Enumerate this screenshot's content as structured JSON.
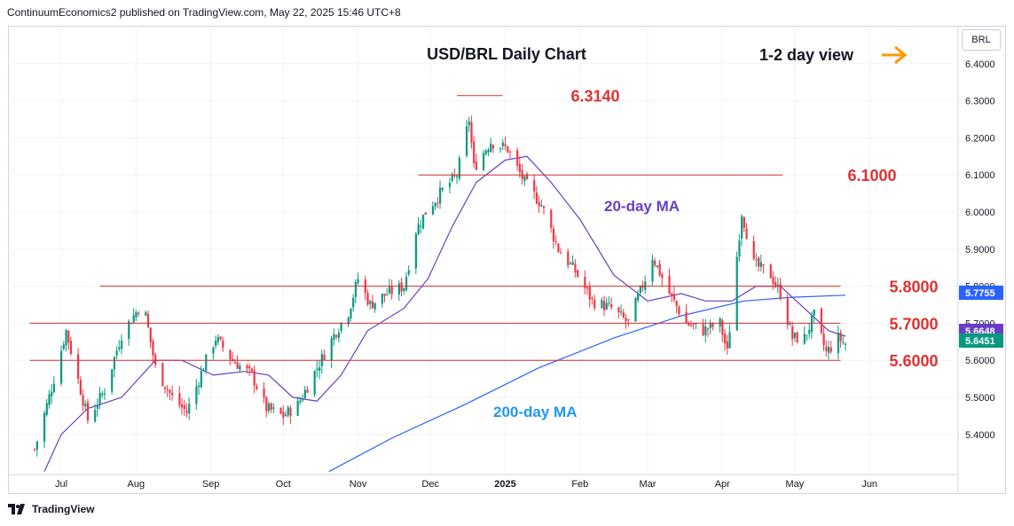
{
  "header": {
    "publisher_line": "ContinuumEconomics2 published on TradingView.com, May 22, 2025 15:46 UTC+8"
  },
  "symbol": "BRL",
  "footer": {
    "brand": "TradingView"
  },
  "colors": {
    "up": "#089981",
    "down": "#f23645",
    "level_line": "#d32f2f",
    "level_text": "#e03131",
    "ma20": "#6a3ec4",
    "ma200": "#2962ff",
    "ma200_label": "#2196f3",
    "arrow": "#ff9800",
    "last_price_box": "#089981",
    "ma_price_box": "#2962ff"
  },
  "chart_data": {
    "type": "candlestick",
    "title": "USD/BRL Daily Chart",
    "subtitle": "1-2 day view",
    "ylim": [
      5.3,
      6.5
    ],
    "y_ticks": [
      "5.4000",
      "5.5000",
      "5.6000",
      "5.7000",
      "5.8000",
      "5.9000",
      "6.0000",
      "6.1000",
      "6.2000",
      "6.3000",
      "6.4000"
    ],
    "y_tick_values": [
      5.4,
      5.5,
      5.6,
      5.7,
      5.8,
      5.9,
      6.0,
      6.1,
      6.2,
      6.3,
      6.4
    ],
    "x_ticks": [
      "Jul",
      "Aug",
      "Sep",
      "Oct",
      "Nov",
      "Dec",
      "2025",
      "Feb",
      "Mar",
      "Apr",
      "May",
      "Jun"
    ],
    "x_tick_dates": [
      "2024-07-01",
      "2024-08-01",
      "2024-09-01",
      "2024-10-01",
      "2024-11-01",
      "2024-12-01",
      "2025-01-01",
      "2025-02-01",
      "2025-03-01",
      "2025-04-01",
      "2025-05-01",
      "2025-06-01"
    ],
    "levels": [
      {
        "label": "6.3140",
        "value": 6.314,
        "from": "2024-12-12",
        "to": "2024-12-31"
      },
      {
        "label": "6.1000",
        "value": 6.1,
        "from": "2024-11-26",
        "to": "2025-04-26"
      },
      {
        "label": "5.8000",
        "value": 5.8,
        "from": "2024-07-17",
        "to": "2025-05-20"
      },
      {
        "label": "5.7000",
        "value": 5.7,
        "from": "2024-06-18",
        "to": "2025-05-20"
      },
      {
        "label": "5.6000",
        "value": 5.6,
        "from": "2024-06-18",
        "to": "2025-05-20"
      }
    ],
    "annotations": {
      "ma20": "20-day MA",
      "ma200": "200-day MA"
    },
    "price_boxes": [
      {
        "label": "5.7755",
        "value": 5.7755,
        "kind": "ma200"
      },
      {
        "label": "5.6648",
        "value": 5.6648,
        "kind": "ma20"
      },
      {
        "label": "5.6451",
        "value": 5.6451,
        "kind": "last"
      }
    ],
    "start_date": "2024-06-20",
    "end_date": "2025-05-22",
    "anchors": [
      [
        "2024-06-20",
        5.36
      ],
      [
        "2024-06-28",
        5.55
      ],
      [
        "2024-07-03",
        5.68
      ],
      [
        "2024-07-12",
        5.44
      ],
      [
        "2024-07-19",
        5.52
      ],
      [
        "2024-07-26",
        5.67
      ],
      [
        "2024-08-02",
        5.74
      ],
      [
        "2024-08-05",
        5.72
      ],
      [
        "2024-08-09",
        5.58
      ],
      [
        "2024-08-16",
        5.5
      ],
      [
        "2024-08-22",
        5.46
      ],
      [
        "2024-08-30",
        5.6
      ],
      [
        "2024-09-03",
        5.66
      ],
      [
        "2024-09-10",
        5.6
      ],
      [
        "2024-09-18",
        5.56
      ],
      [
        "2024-09-24",
        5.47
      ],
      [
        "2024-10-01",
        5.45
      ],
      [
        "2024-10-07",
        5.48
      ],
      [
        "2024-10-15",
        5.58
      ],
      [
        "2024-10-23",
        5.68
      ],
      [
        "2024-10-28",
        5.73
      ],
      [
        "2024-11-01",
        5.82
      ],
      [
        "2024-11-06",
        5.75
      ],
      [
        "2024-11-13",
        5.78
      ],
      [
        "2024-11-20",
        5.8
      ],
      [
        "2024-11-25",
        5.95
      ],
      [
        "2024-11-29",
        6.0
      ],
      [
        "2024-12-05",
        6.05
      ],
      [
        "2024-12-12",
        6.1
      ],
      [
        "2024-12-17",
        6.25
      ],
      [
        "2024-12-19",
        6.12
      ],
      [
        "2024-12-26",
        6.19
      ],
      [
        "2025-01-02",
        6.17
      ],
      [
        "2025-01-09",
        6.08
      ],
      [
        "2025-01-16",
        6.02
      ],
      [
        "2025-01-23",
        5.9
      ],
      [
        "2025-01-30",
        5.84
      ],
      [
        "2025-02-06",
        5.76
      ],
      [
        "2025-02-14",
        5.74
      ],
      [
        "2025-02-21",
        5.7
      ],
      [
        "2025-02-28",
        5.82
      ],
      [
        "2025-03-03",
        5.88
      ],
      [
        "2025-03-10",
        5.78
      ],
      [
        "2025-03-17",
        5.7
      ],
      [
        "2025-03-24",
        5.68
      ],
      [
        "2025-03-31",
        5.7
      ],
      [
        "2025-04-03",
        5.62
      ],
      [
        "2025-04-07",
        5.88
      ],
      [
        "2025-04-09",
        6.0
      ],
      [
        "2025-04-14",
        5.86
      ],
      [
        "2025-04-21",
        5.83
      ],
      [
        "2025-04-25",
        5.78
      ],
      [
        "2025-04-30",
        5.66
      ],
      [
        "2025-05-05",
        5.66
      ],
      [
        "2025-05-09",
        5.72
      ],
      [
        "2025-05-14",
        5.62
      ],
      [
        "2025-05-19",
        5.66
      ],
      [
        "2025-05-22",
        5.645
      ]
    ],
    "ma20_anchors": [
      [
        "2024-06-24",
        5.3
      ],
      [
        "2024-07-01",
        5.4
      ],
      [
        "2024-07-12",
        5.47
      ],
      [
        "2024-07-26",
        5.5
      ],
      [
        "2024-08-09",
        5.6
      ],
      [
        "2024-08-20",
        5.6
      ],
      [
        "2024-09-02",
        5.56
      ],
      [
        "2024-09-15",
        5.57
      ],
      [
        "2024-09-25",
        5.56
      ],
      [
        "2024-10-05",
        5.5
      ],
      [
        "2024-10-15",
        5.49
      ],
      [
        "2024-10-25",
        5.56
      ],
      [
        "2024-11-05",
        5.68
      ],
      [
        "2024-11-20",
        5.74
      ],
      [
        "2024-11-30",
        5.82
      ],
      [
        "2024-12-10",
        5.96
      ],
      [
        "2024-12-20",
        6.08
      ],
      [
        "2025-01-01",
        6.14
      ],
      [
        "2025-01-10",
        6.15
      ],
      [
        "2025-01-20",
        6.08
      ],
      [
        "2025-02-01",
        5.98
      ],
      [
        "2025-02-15",
        5.83
      ],
      [
        "2025-03-01",
        5.76
      ],
      [
        "2025-03-15",
        5.78
      ],
      [
        "2025-03-25",
        5.76
      ],
      [
        "2025-04-05",
        5.76
      ],
      [
        "2025-04-15",
        5.8
      ],
      [
        "2025-04-25",
        5.8
      ],
      [
        "2025-05-05",
        5.74
      ],
      [
        "2025-05-15",
        5.68
      ],
      [
        "2025-05-22",
        5.665
      ]
    ],
    "ma200_anchors": [
      [
        "2024-10-20",
        5.3
      ],
      [
        "2024-11-15",
        5.39
      ],
      [
        "2024-12-15",
        5.48
      ],
      [
        "2025-01-15",
        5.58
      ],
      [
        "2025-02-15",
        5.66
      ],
      [
        "2025-03-15",
        5.72
      ],
      [
        "2025-04-10",
        5.76
      ],
      [
        "2025-04-30",
        5.77
      ],
      [
        "2025-05-22",
        5.7755
      ]
    ]
  }
}
